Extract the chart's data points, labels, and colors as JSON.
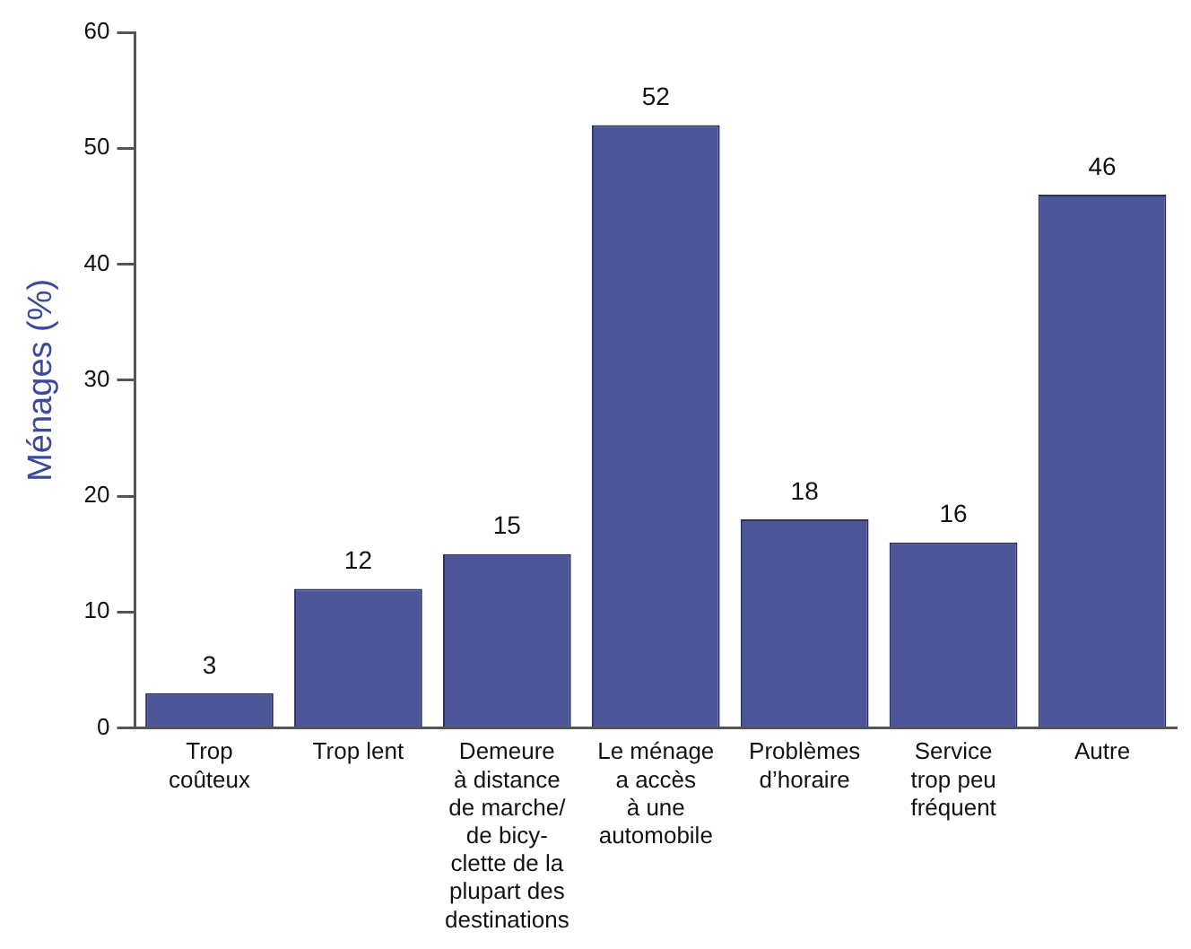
{
  "chart_data": {
    "type": "bar",
    "ylabel": "Ménages (%)",
    "categories": [
      "Trop\ncoûteux",
      "Trop lent",
      "Demeure\nà distance\nde marche/\nde bicy-\nclette de la\nplupart des\ndestinations",
      "Le ménage\na accès\nà une\nautomobile",
      "Problèmes\nd’horaire",
      "Service\ntrop peu\nfréquent",
      "Autre"
    ],
    "values": [
      3,
      12,
      15,
      52,
      18,
      16,
      46
    ],
    "color": "#4b5598",
    "ylim": [
      0,
      60
    ],
    "yticks": [
      0,
      10,
      20,
      30,
      40,
      50,
      60
    ],
    "grid": false,
    "legend": false,
    "data_labels": true
  }
}
